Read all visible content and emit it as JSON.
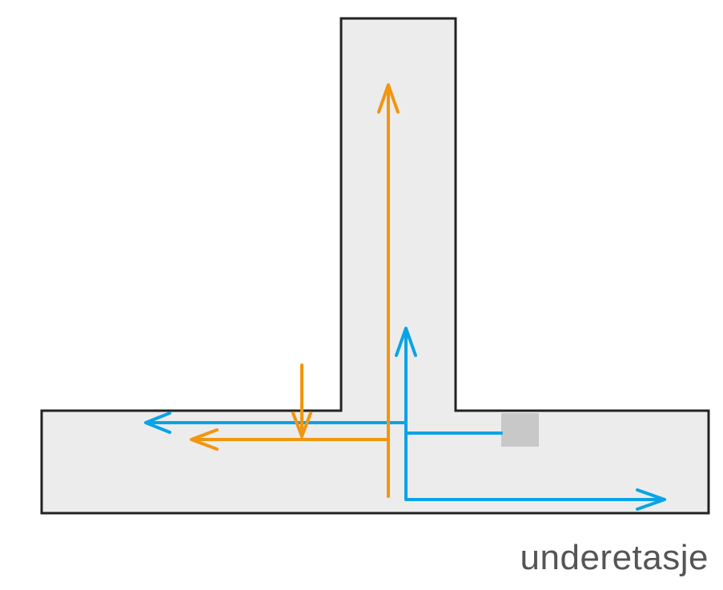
{
  "floor_label": "underetasje",
  "colors": {
    "plan_fill": "#ececec",
    "plan_stroke": "#222222",
    "route_orange": "#f0960f",
    "route_blue": "#0aa3e6",
    "marker_grey": "#c8c8c8",
    "label_text": "#555555"
  }
}
